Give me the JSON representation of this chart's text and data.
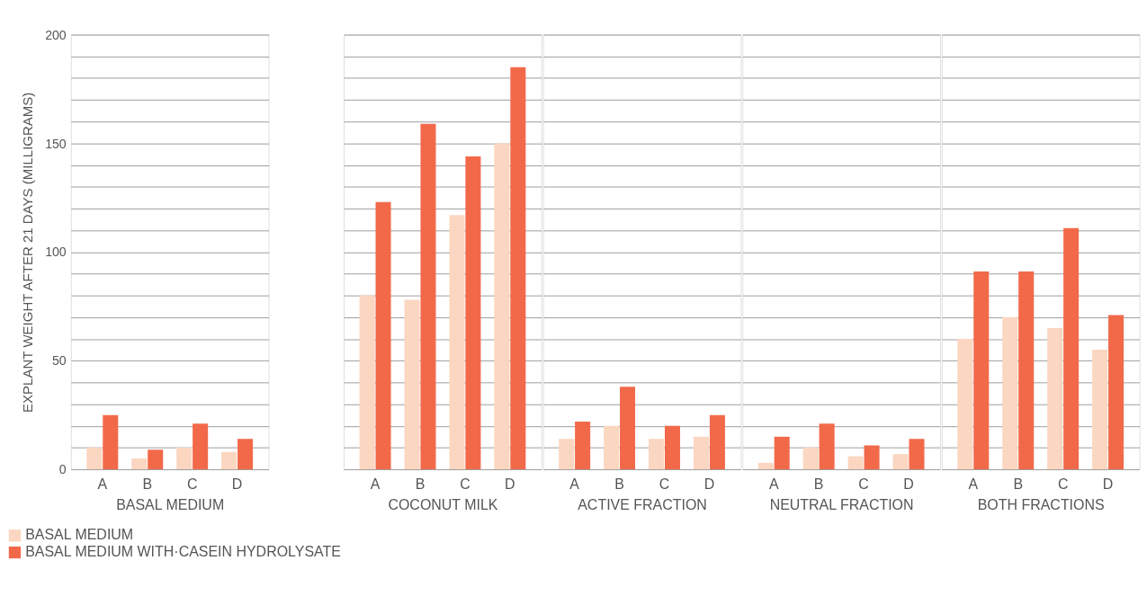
{
  "chart_data": [
    {
      "type": "bar",
      "categories": [
        "A",
        "B",
        "C",
        "D"
      ],
      "xlabel": "BASAL MEDIUM",
      "ylabel": "EXPLANT WEIGHT AFTER 21 DAYS (MILLIGRAMS)",
      "ylim": [
        0,
        200
      ],
      "yticks": [
        0,
        {
          "value": 10,
          "label": null
        },
        {
          "value": 20,
          "label": null
        },
        {
          "value": 30,
          "label": null
        },
        {
          "value": 40,
          "label": null
        },
        50,
        {
          "value": 60,
          "label": null
        },
        {
          "value": 70,
          "label": null
        },
        {
          "value": 80,
          "label": null
        },
        {
          "value": 90,
          "label": null
        },
        100,
        {
          "value": 110,
          "label": null
        },
        {
          "value": 120,
          "label": null
        },
        {
          "value": 130,
          "label": null
        },
        {
          "value": 140,
          "label": null
        },
        150,
        {
          "value": 160,
          "label": null
        },
        {
          "value": 170,
          "label": null
        },
        {
          "value": 180,
          "label": null
        },
        {
          "value": 190,
          "label": null
        },
        200
      ],
      "grid": "y",
      "legend": "bottom left",
      "series": [
        {
          "name": "BASAL MEDIUM",
          "color": "#fbd6c0",
          "values": [
            10,
            5,
            10,
            8
          ]
        },
        {
          "name": "BASAL MEDIUM WITH·CASEIN HYDROLYSATE",
          "color": "#f2694a",
          "values": [
            25,
            9,
            21,
            14
          ]
        }
      ]
    },
    {
      "type": "bar",
      "categories": [
        "A",
        "B",
        "C",
        "D"
      ],
      "xlabel": "COCONUT MILK",
      "ylim": [
        0,
        200
      ],
      "yticks": [
        0,
        10,
        20,
        30,
        40,
        50,
        60,
        70,
        80,
        90,
        100,
        110,
        120,
        130,
        140,
        150,
        160,
        170,
        180,
        190,
        200
      ],
      "grid": "y",
      "tick_labels": "x",
      "series": [
        {
          "color": "#fbd6c0",
          "values": [
            80,
            78,
            117,
            150
          ]
        },
        {
          "color": "#f2694a",
          "values": [
            123,
            159,
            144,
            185
          ]
        }
      ]
    },
    {
      "type": "bar",
      "categories": [
        "A",
        "B",
        "C",
        "D"
      ],
      "xlabel": "ACTIVE FRACTION",
      "ylim": [
        0,
        200
      ],
      "yticks": [
        0,
        10,
        20,
        30,
        40,
        50,
        60,
        70,
        80,
        90,
        100,
        110,
        120,
        130,
        140,
        150,
        160,
        170,
        180,
        190,
        200
      ],
      "grid": "y",
      "tick_labels": "x",
      "series": [
        {
          "color": "#fbd6c0",
          "values": [
            14,
            20,
            14,
            15
          ]
        },
        {
          "color": "#f2694a",
          "values": [
            22,
            38,
            20,
            25
          ]
        }
      ]
    },
    {
      "type": "bar",
      "categories": [
        "A",
        "B",
        "C",
        "D"
      ],
      "xlabel": "NEUTRAL FRACTION",
      "ylim": [
        0,
        200
      ],
      "yticks": [
        0,
        10,
        20,
        30,
        40,
        50,
        60,
        70,
        80,
        90,
        100,
        110,
        120,
        130,
        140,
        150,
        160,
        170,
        180,
        190,
        200
      ],
      "grid": "y",
      "tick_labels": "x",
      "series": [
        {
          "color": "#fbd6c0",
          "values": [
            3,
            10,
            6,
            7
          ]
        },
        {
          "color": "#f2694a",
          "values": [
            15,
            21,
            11,
            14
          ]
        }
      ]
    },
    {
      "type": "bar",
      "categories": [
        "A",
        "B",
        "C",
        "D"
      ],
      "xlabel": "BOTH FRACTIONS",
      "ylim": [
        0,
        200
      ],
      "yticks": [
        0,
        10,
        20,
        30,
        40,
        50,
        60,
        70,
        80,
        90,
        100,
        110,
        120,
        130,
        140,
        150,
        160,
        170,
        180,
        190,
        200
      ],
      "grid": "y",
      "tick_labels": "x",
      "series": [
        {
          "color": "#fbd6c0",
          "values": [
            60,
            70,
            65,
            55
          ]
        },
        {
          "color": "#f2694a",
          "values": [
            91,
            91,
            111,
            71
          ]
        }
      ]
    }
  ]
}
